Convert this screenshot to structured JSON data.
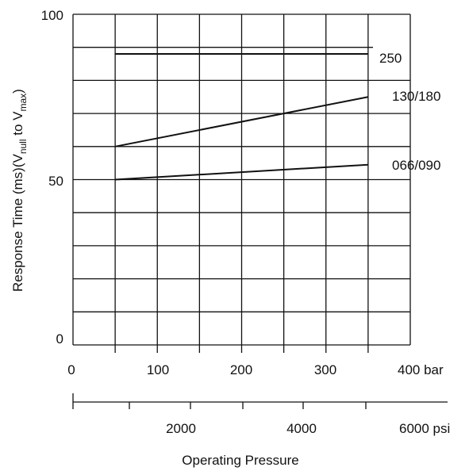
{
  "chart_data": {
    "type": "line",
    "title": "",
    "xlabel": "Operating Pressure",
    "ylabel_parts": [
      "Response Time (ms)(V",
      "null",
      " to V",
      "max",
      ")"
    ],
    "xlim": [
      0,
      400
    ],
    "ylim": [
      0,
      100
    ],
    "grid": true,
    "x_ticks_bar": [
      "0",
      "100",
      "200",
      "300",
      "400 bar"
    ],
    "x_ticks_psi": [
      "2000",
      "4000",
      "6000 psi"
    ],
    "y_ticks": [
      "0",
      "50",
      "100"
    ],
    "series": [
      {
        "name": "250",
        "x": [
          50,
          350
        ],
        "y": [
          88,
          88
        ]
      },
      {
        "name": "130/180",
        "x": [
          50,
          350
        ],
        "y": [
          60,
          75
        ]
      },
      {
        "name": "066/090",
        "x": [
          50,
          350
        ],
        "y": [
          50,
          54.5
        ]
      }
    ]
  }
}
